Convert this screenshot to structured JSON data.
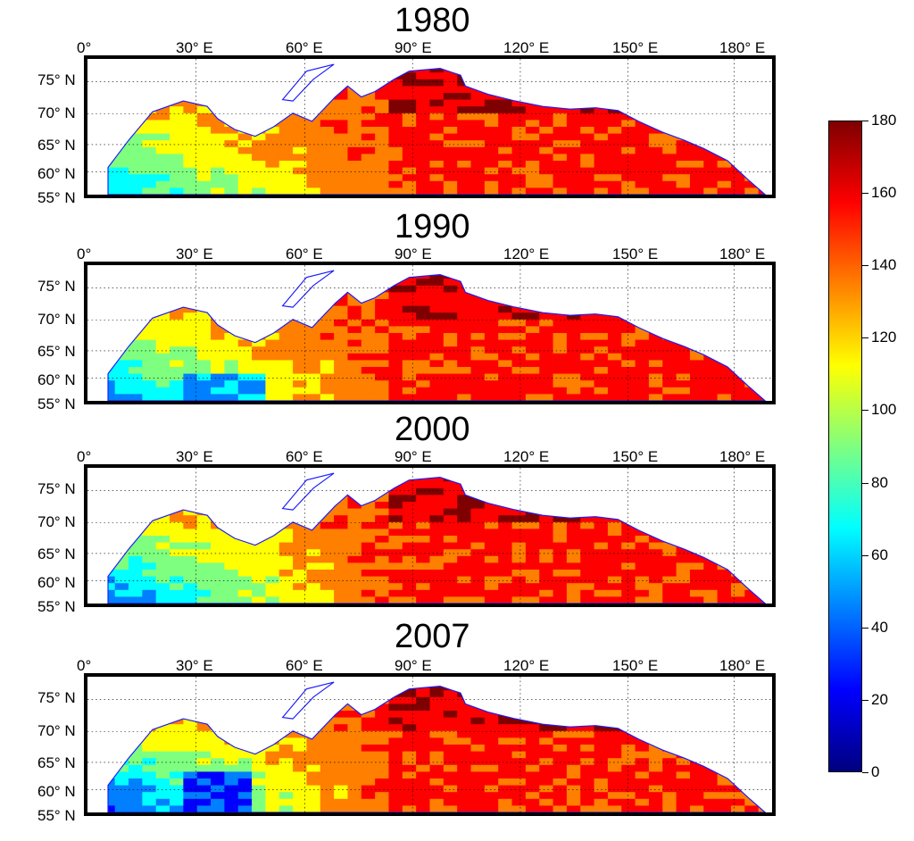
{
  "panels": [
    {
      "title": "1980"
    },
    {
      "title": "1990"
    },
    {
      "title": "2000"
    },
    {
      "title": "2007"
    }
  ],
  "lon_labels": [
    "0°",
    "30° E",
    "60° E",
    "90° E",
    "120° E",
    "150° E",
    "180° E"
  ],
  "lat_labels": [
    "75° N",
    "70° N",
    "65° N",
    "60° N",
    "55° N"
  ],
  "colorbar": {
    "ticks": [
      "180",
      "160",
      "140",
      "120",
      "100",
      "80",
      "60",
      "40",
      "20",
      "0"
    ],
    "range": [
      0,
      180
    ],
    "colormap": "jet",
    "colors": [
      "#00007f",
      "#0000ff",
      "#007fff",
      "#00ffff",
      "#7fff7f",
      "#ffff00",
      "#ff7f00",
      "#ff0000",
      "#7f0000"
    ]
  },
  "map_colors": {
    "coastline": "#1a1aff",
    "frame": "#000000",
    "gridline": "#000000"
  }
}
